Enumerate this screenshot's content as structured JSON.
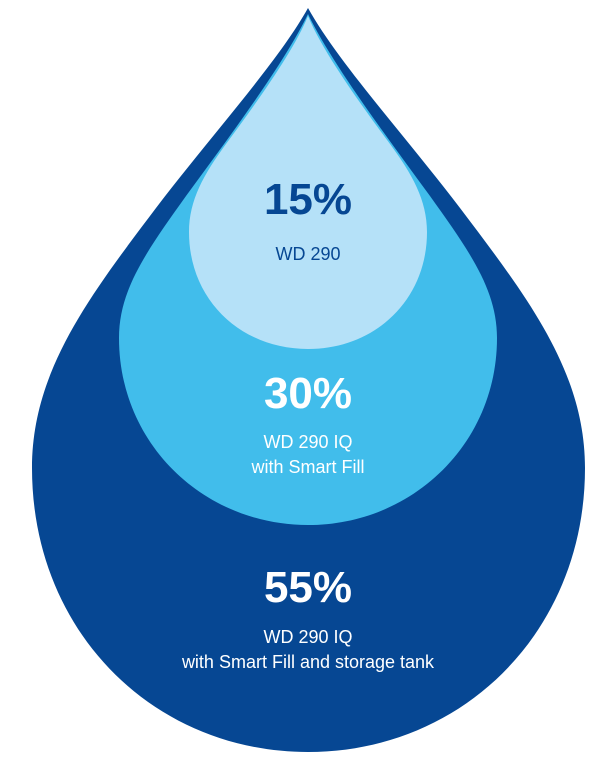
{
  "chart_data": {
    "type": "pie",
    "title": "",
    "series": [
      {
        "percent_label": "55%",
        "value": 55,
        "label_lines": [
          "WD 290 IQ",
          "with Smart Fill and storage tank"
        ],
        "fill_color": "#064793",
        "text_color": "#ffffff"
      },
      {
        "percent_label": "30%",
        "value": 30,
        "label_lines": [
          "WD 290 IQ",
          "with Smart Fill"
        ],
        "fill_color": "#41bdeb",
        "text_color": "#ffffff"
      },
      {
        "percent_label": "15%",
        "value": 15,
        "label_lines": [
          "WD 290"
        ],
        "fill_color": "#b5e1f8",
        "text_color": "#064793"
      }
    ]
  }
}
